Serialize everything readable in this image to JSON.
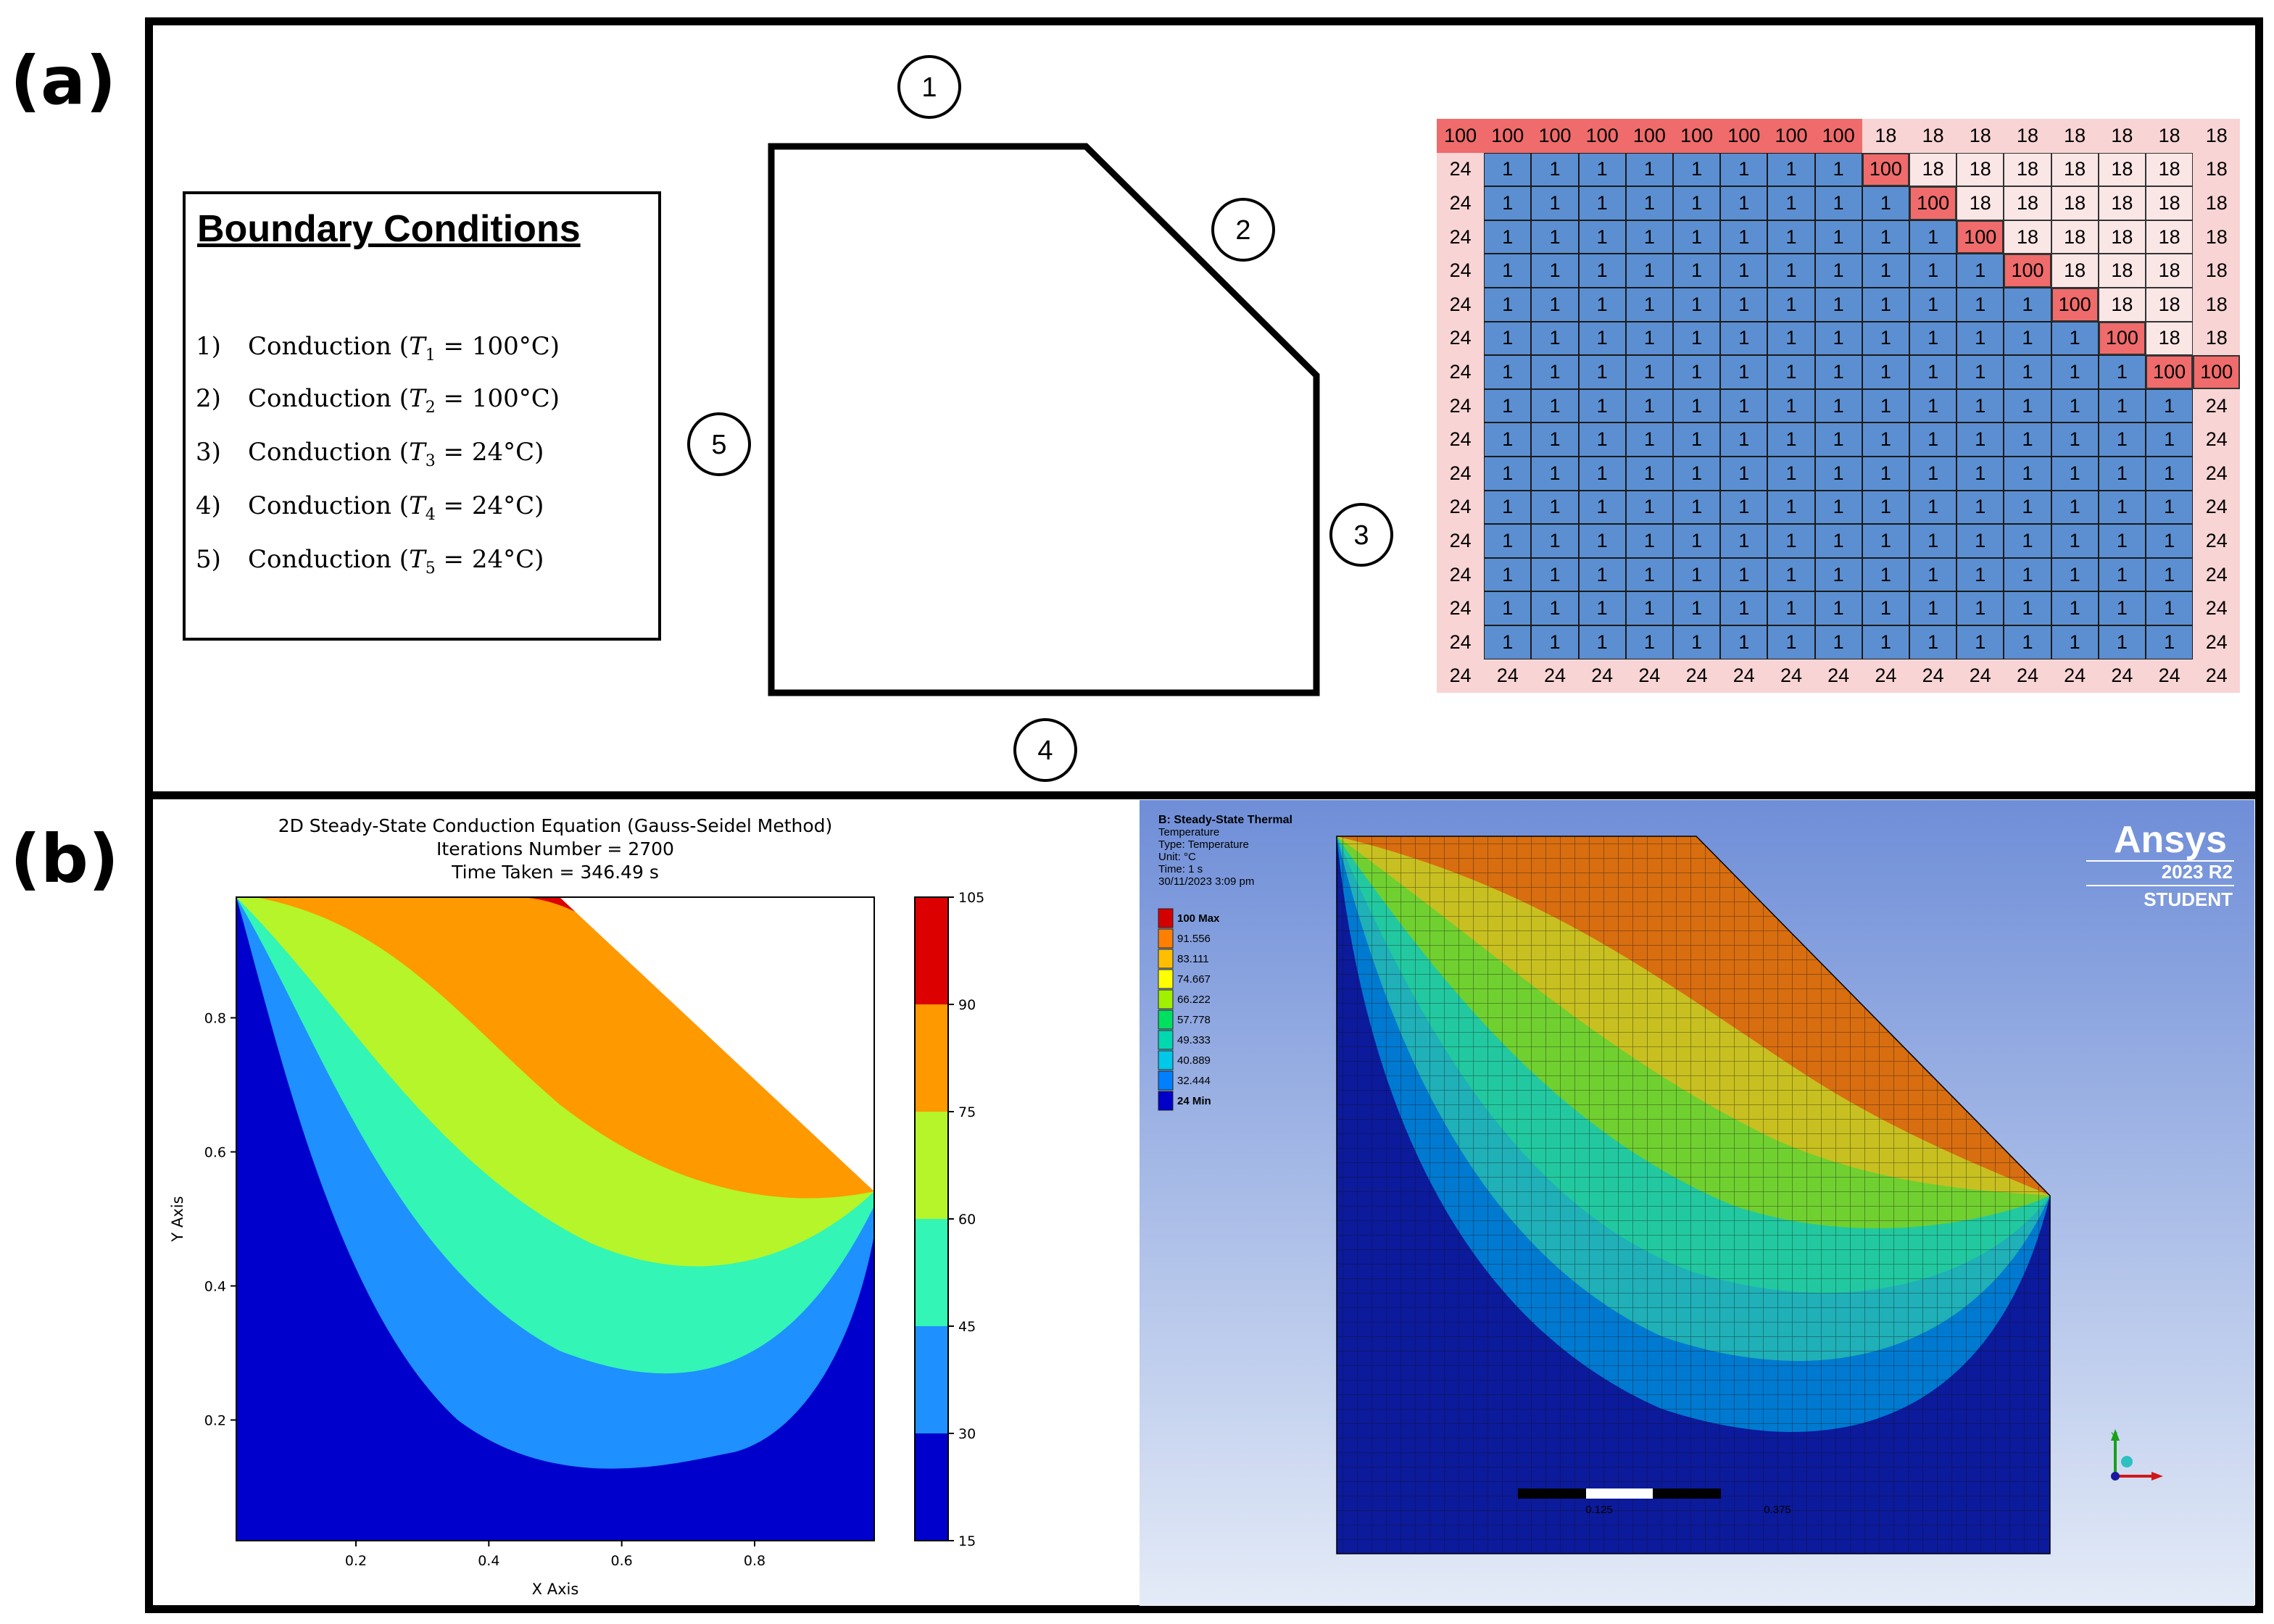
{
  "panels": {
    "a_label": "(a)",
    "b_label": "(b)"
  },
  "boundary_conditions": {
    "title": "Boundary Conditions",
    "rows": [
      {
        "num": "1)",
        "text": "Conduction (",
        "T": "T",
        "sub": "1",
        "value": " = 100°C)"
      },
      {
        "num": "2)",
        "text": "Conduction (",
        "T": "T",
        "sub": "2",
        "value": " = 100°C)"
      },
      {
        "num": "3)",
        "text": "Conduction (",
        "T": "T",
        "sub": "3",
        "value": " = 24°C)"
      },
      {
        "num": "4)",
        "text": "Conduction (",
        "T": "T",
        "sub": "4",
        "value": " = 24°C)"
      },
      {
        "num": "5)",
        "text": "Conduction (",
        "T": "T",
        "sub": "5",
        "value": " = 24°C)"
      }
    ]
  },
  "geometry": {
    "edge_labels": [
      "1",
      "2",
      "3",
      "4",
      "5"
    ]
  },
  "grid": {
    "top_hot_value": "100",
    "top_ambient_value": "18",
    "left_value": "24",
    "bottom_value": "24",
    "interior_value": "1",
    "diag_value": "100",
    "colors": {
      "hot": "#f06b6b",
      "boundary_bg": "#f9d4d4",
      "interior": "#5b8fd1",
      "outside": "#f9d4d4"
    }
  },
  "contour_plot": {
    "title_line1": "2D Steady-State Conduction Equation (Gauss-Seidel Method)",
    "title_line2": "Iterations Number = 2700",
    "title_line3": "Time Taken = 346.49 s",
    "xlabel": "X Axis",
    "ylabel": "Y Axis",
    "x_ticks": [
      "0.2",
      "0.4",
      "0.6",
      "0.8"
    ],
    "y_ticks": [
      "0.2",
      "0.4",
      "0.6",
      "0.8"
    ],
    "colorbar_ticks": [
      "15",
      "30",
      "45",
      "60",
      "75",
      "90",
      "105"
    ],
    "level_colors": [
      "#0000cd",
      "#1e90ff",
      "#33f5b5",
      "#b5f52a",
      "#ff9900",
      "#dd0000"
    ]
  },
  "ansys": {
    "header": [
      "B: Steady-State Thermal",
      "Temperature",
      "Type: Temperature",
      "Unit: °C",
      "Time: 1 s",
      "30/11/2023 3:09 pm"
    ],
    "brand": "Ansys",
    "version": "2023 R2",
    "edition": "STUDENT",
    "legend": [
      "100 Max",
      "91.556",
      "83.111",
      "74.667",
      "66.222",
      "57.778",
      "49.333",
      "40.889",
      "32.444",
      "24 Min"
    ],
    "legend_colors": [
      "#d40000",
      "#ff7f00",
      "#ffbf00",
      "#ffff00",
      "#a0f000",
      "#00e060",
      "#00d8b0",
      "#00c8e8",
      "#0080ff",
      "#0000c8"
    ],
    "scale_labels": [
      "0.125",
      "0.375"
    ],
    "axis_y": "Y"
  }
}
